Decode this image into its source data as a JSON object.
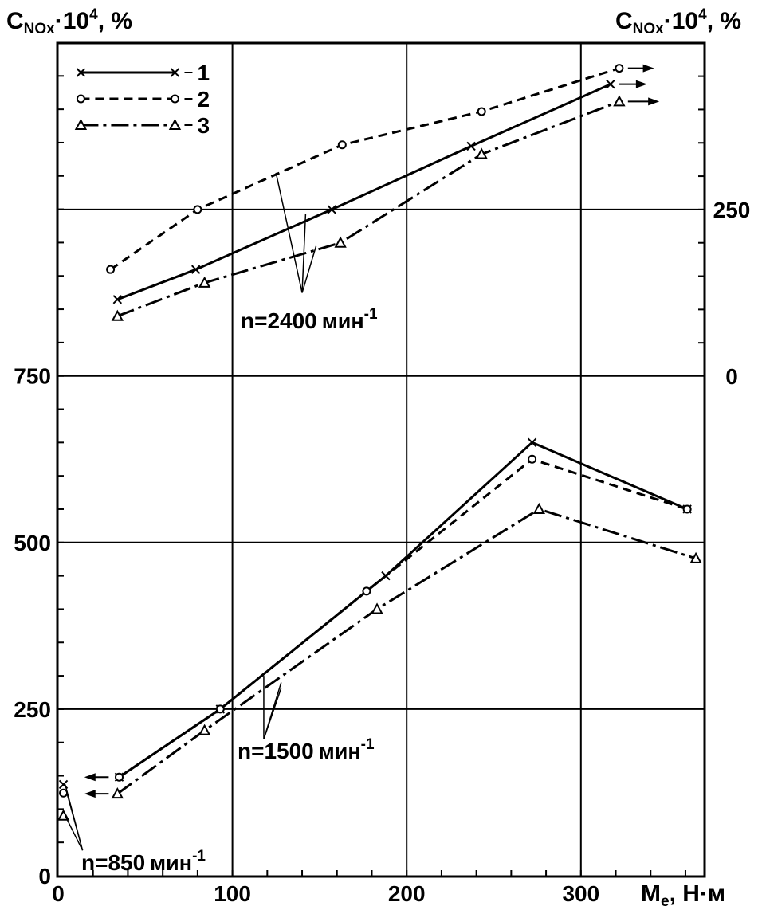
{
  "chart_data": {
    "type": "line",
    "y_left_label": {
      "base": "C",
      "sub": "NOx",
      "mid": "·10",
      "sup": "4",
      "tail": ", %"
    },
    "y_right_label": {
      "base": "C",
      "sub": "NOx",
      "mid": "·10",
      "sup": "4",
      "tail": ", %"
    },
    "x_label": {
      "base": "M",
      "sub": "e",
      "tail": ", Н·м"
    },
    "x_ticks": [
      "0",
      "100",
      "200",
      "300"
    ],
    "y_left_ticks": [
      "0",
      "250",
      "500",
      "750"
    ],
    "y_right_ticks": [
      "0",
      "250"
    ],
    "xlim": [
      0,
      372
    ],
    "ylim_left": [
      0,
      1230
    ],
    "grid": true,
    "legend": {
      "position": "top-left",
      "entries": [
        {
          "number": "1",
          "line": "solid",
          "marker": "cross"
        },
        {
          "number": "2",
          "line": "dashed",
          "marker": "circle"
        },
        {
          "number": "3",
          "line": "dashdot",
          "marker": "triangle"
        }
      ]
    },
    "annotations": {
      "n2400": {
        "prefix": "n=2400",
        "unit": "мин",
        "sup": "-1"
      },
      "n1500": {
        "prefix": "n=1500",
        "unit": "мин",
        "sup": "-1"
      },
      "n850": {
        "prefix": "n=850",
        "unit": "мин",
        "sup": "-1"
      }
    },
    "groups": [
      {
        "speed": "n=1500 мин-1",
        "axis": "left",
        "series": [
          {
            "legend": "1",
            "x": [
              35,
              93,
              188,
              272,
              361
            ],
            "y": [
              148,
              250,
              450,
              650,
              550
            ]
          },
          {
            "legend": "2",
            "x": [
              35,
              93,
              177,
              272,
              361
            ],
            "y": [
              148,
              250,
              427,
              625,
              550
            ]
          },
          {
            "legend": "3",
            "x": [
              34,
              84,
              183,
              276,
              366
            ],
            "y": [
              123,
              218,
              400,
              550,
              476
            ]
          }
        ]
      },
      {
        "speed": "n=850 мин-1",
        "axis": "left",
        "series": [
          {
            "legend": "1",
            "x": [
              3
            ],
            "y": [
              137
            ]
          },
          {
            "legend": "2",
            "x": [
              3
            ],
            "y": [
              124
            ]
          },
          {
            "legend": "3",
            "x": [
              3
            ],
            "y": [
              90
            ]
          }
        ]
      },
      {
        "speed": "n=2400 мин-1",
        "axis": "right",
        "series": [
          {
            "legend": "1",
            "x": [
              34,
              79,
              157,
              237,
              317
            ],
            "y": [
              115,
              160,
              250,
              345,
              438
            ]
          },
          {
            "legend": "2",
            "x": [
              30,
              80,
              163,
              243,
              322
            ],
            "y": [
              160,
              250,
              347,
              397,
              462
            ]
          },
          {
            "legend": "3",
            "x": [
              34,
              84,
              162,
              243,
              322
            ],
            "y": [
              90,
              140,
              200,
              333,
              412
            ]
          }
        ]
      }
    ]
  }
}
